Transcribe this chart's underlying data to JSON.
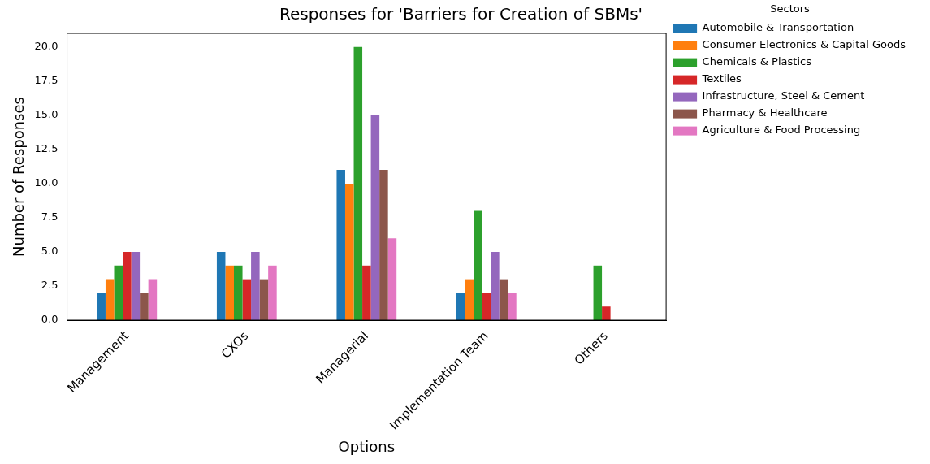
{
  "chart_data": {
    "type": "bar",
    "title": "Responses for 'Barriers for Creation of SBMs'",
    "xlabel": "Options",
    "ylabel": "Number of Responses",
    "legend_title": "Sectors",
    "legend": "right",
    "grid": false,
    "categories": [
      "Management",
      "CXOs",
      "Managerial",
      "Implementation Team",
      "Others"
    ],
    "ylim": [
      0,
      21
    ],
    "yticks": [
      {
        "value": 0,
        "label": "0.0"
      },
      {
        "value": 2.5,
        "label": "2.5"
      },
      {
        "value": 5,
        "label": "5.0"
      },
      {
        "value": 7.5,
        "label": "7.5"
      },
      {
        "value": 10,
        "label": "10.0"
      },
      {
        "value": 12.5,
        "label": "12.5"
      },
      {
        "value": 15,
        "label": "15.0"
      },
      {
        "value": 17.5,
        "label": "17.5"
      },
      {
        "value": 20,
        "label": "20.0"
      }
    ],
    "series": [
      {
        "name": "Automobile & Transportation",
        "color": "#1f77b4",
        "values": [
          2,
          5,
          11,
          2,
          0
        ]
      },
      {
        "name": "Consumer Electronics & Capital Goods",
        "color": "#ff7f0e",
        "values": [
          3,
          4,
          10,
          3,
          0
        ]
      },
      {
        "name": "Chemicals & Plastics",
        "color": "#2ca02c",
        "values": [
          4,
          4,
          20,
          8,
          4
        ]
      },
      {
        "name": "Textiles",
        "color": "#d62728",
        "values": [
          5,
          3,
          4,
          2,
          1
        ]
      },
      {
        "name": "Infrastructure, Steel & Cement",
        "color": "#9467bd",
        "values": [
          5,
          5,
          15,
          5,
          0
        ]
      },
      {
        "name": "Pharmacy & Healthcare",
        "color": "#8c564b",
        "values": [
          2,
          3,
          11,
          3,
          0
        ]
      },
      {
        "name": "Agriculture & Food Processing",
        "color": "#e377c2",
        "values": [
          3,
          4,
          6,
          2,
          0
        ]
      }
    ]
  }
}
